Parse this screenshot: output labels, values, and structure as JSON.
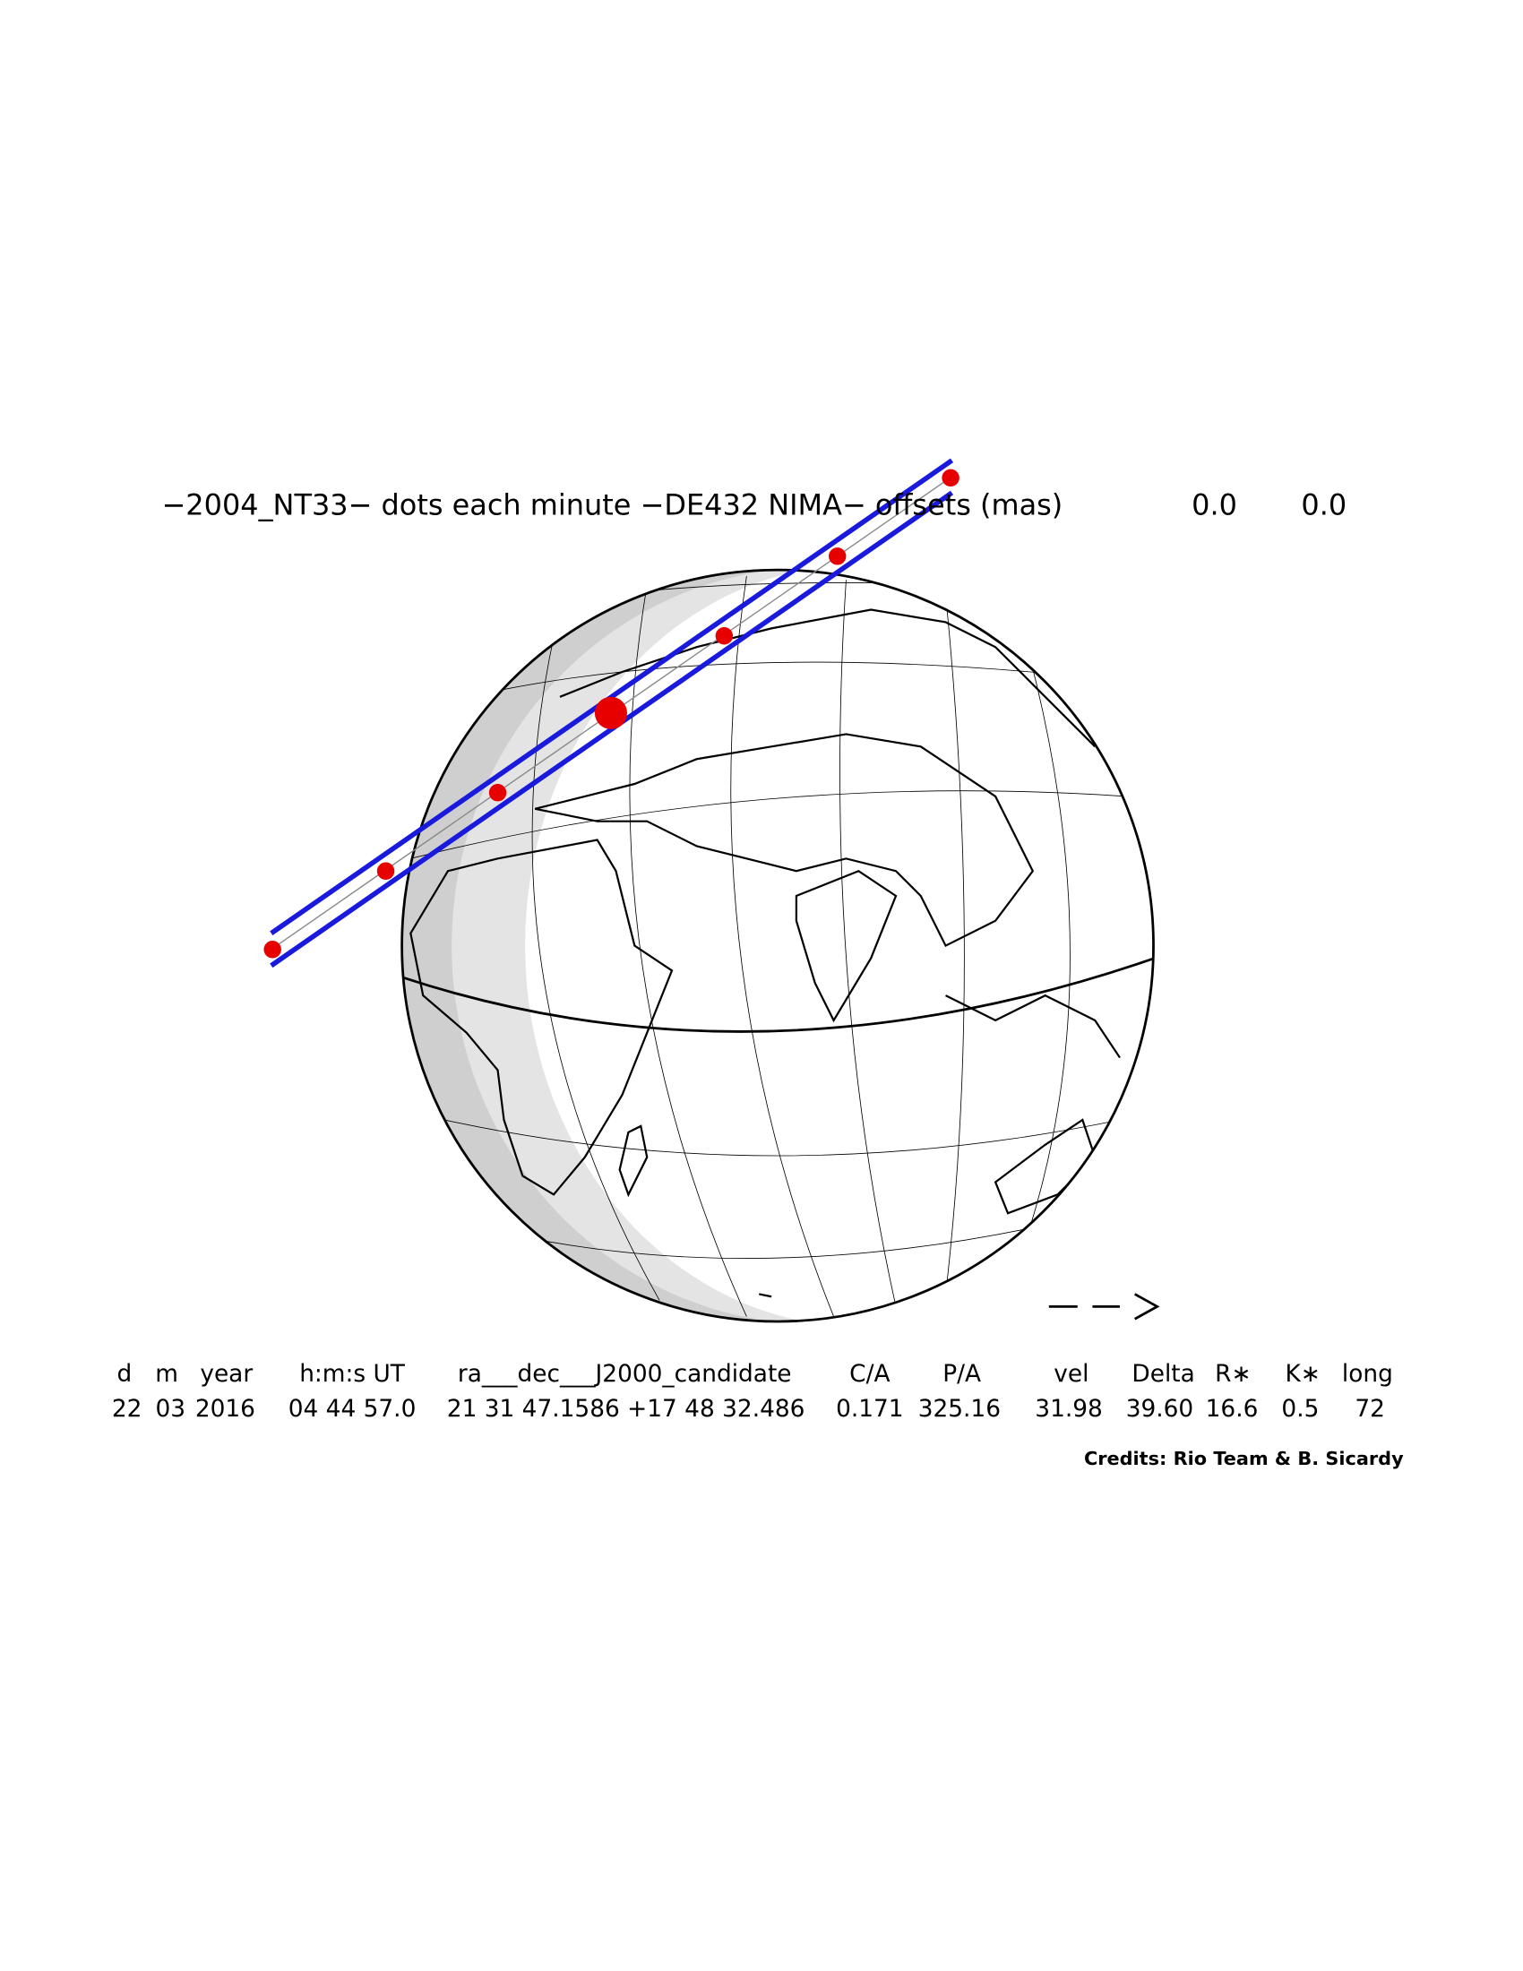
{
  "title": "−2004_NT33− dots each minute −DE432 NIMA− offsets (mas)",
  "offsets": [
    "0.0",
    "0.0"
  ],
  "table": {
    "headers": [
      "d",
      "m",
      "year",
      "h:m:s UT",
      "ra___dec___J2000_candidate",
      "C/A",
      "P/A",
      "vel",
      "Delta",
      "R∗",
      "K∗",
      "long"
    ],
    "values": [
      "22",
      "03",
      "2016",
      "04 44 57.0",
      "21 31 47.1586 +17 48 32.486",
      "0.171",
      "325.16",
      "31.98",
      "39.60",
      "16.6",
      "0.5",
      "72"
    ]
  },
  "credits": "Credits: Rio Team & B. Sicardy"
}
